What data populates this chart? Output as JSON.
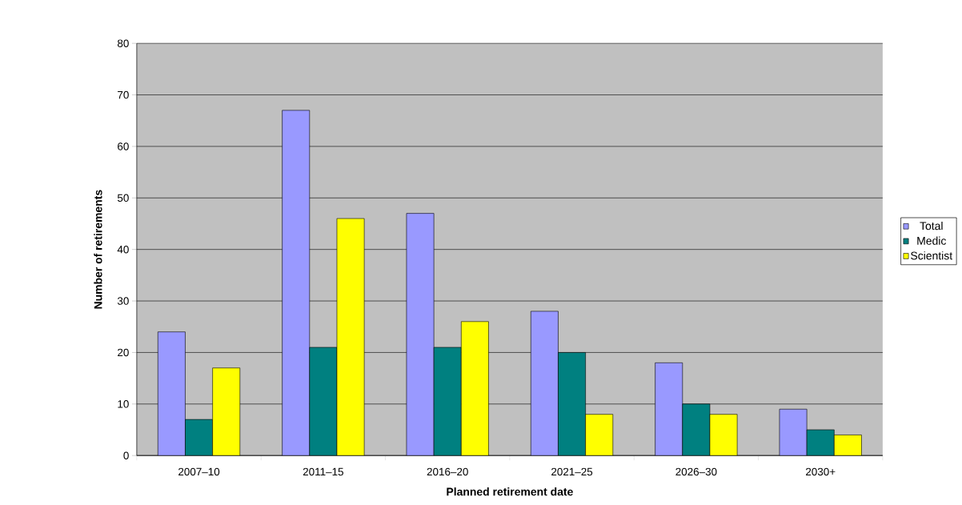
{
  "chart_data": {
    "type": "bar",
    "xlabel": "Planned retirement date",
    "ylabel": "Number of retirements",
    "categories": [
      "2007–10",
      "2011–15",
      "2016–20",
      "2021–25",
      "2026–30",
      "2030+"
    ],
    "series": [
      {
        "name": "Total",
        "color": "#9999ff",
        "values": [
          24,
          67,
          47,
          28,
          18,
          9
        ]
      },
      {
        "name": "Medic",
        "color": "#008080",
        "values": [
          7,
          21,
          21,
          20,
          10,
          5
        ]
      },
      {
        "name": "Scientist",
        "color": "#ffff00",
        "values": [
          17,
          46,
          26,
          8,
          8,
          4
        ]
      }
    ],
    "ylim": [
      0,
      80
    ],
    "yticks": [
      0,
      10,
      20,
      30,
      40,
      50,
      60,
      70,
      80
    ],
    "grid": "y",
    "legend": "right"
  }
}
